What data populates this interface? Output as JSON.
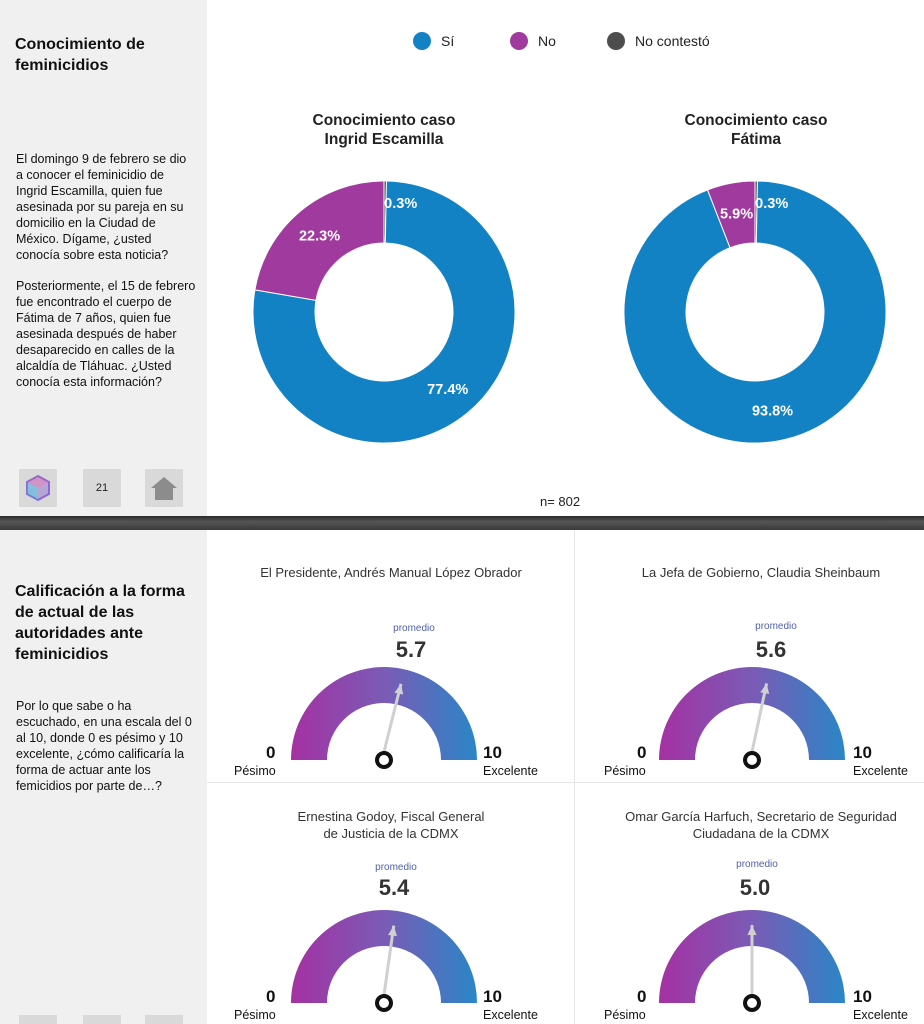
{
  "slide1": {
    "title": "Conocimiento de feminicidios",
    "question_p1": "El domingo 9 de febrero se dio a conocer el feminicidio de Ingrid Escamilla, quien fue asesinada por su pareja en su domicilio en la Ciudad de México. Dígame, ¿usted conocía sobre esta noticia?",
    "question_p2": "Posteriormente, el 15 de febrero fue encontrado el cuerpo de Fátima de 7 años, quien fue asesinada después de haber desaparecido en calles de la alcaldía de Tláhuac. ¿Usted conocía esta información?",
    "page_number": "21",
    "legend": [
      {
        "label": "Sí",
        "color": "#1282c4"
      },
      {
        "label": "No",
        "color": "#a03a9f"
      },
      {
        "label": "No contestó",
        "color": "#4d4d4d"
      }
    ],
    "n_label": "n= 802"
  },
  "slide2": {
    "title": "Calificación a la forma de actual de las autoridades ante feminicidios",
    "question": "Por lo que sabe o ha escuchado, en una escala del 0 al 10, donde 0 es pésimo y 10 excelente, ¿cómo calificaría la forma de actuar ante los femicidios por parte de…?",
    "promedio_label": "promedio",
    "min_value": "0",
    "max_value": "10",
    "min_label": "Pésimo",
    "max_label": "Excelente"
  },
  "chart_data": [
    {
      "type": "pie",
      "title": "Conocimiento caso Ingrid Escamilla",
      "title_lines": [
        "Conocimiento caso",
        "Ingrid Escamilla"
      ],
      "categories": [
        "No contestó",
        "Sí",
        "No"
      ],
      "values": [
        0.3,
        77.4,
        22.3
      ],
      "labels": [
        "0.3%",
        "77.4%",
        "22.3%"
      ],
      "colors": [
        "#4d4d4d",
        "#1282c4",
        "#a03a9f"
      ]
    },
    {
      "type": "pie",
      "title": "Conocimiento caso Fátima",
      "title_lines": [
        "Conocimiento caso",
        "Fátima"
      ],
      "categories": [
        "No contestó",
        "Sí",
        "No"
      ],
      "values": [
        0.3,
        93.8,
        5.9
      ],
      "labels": [
        "0.3%",
        "93.8%",
        "5.9%"
      ],
      "colors": [
        "#4d4d4d",
        "#1282c4",
        "#a03a9f"
      ]
    },
    {
      "type": "gauge",
      "title_lines": [
        "El Presidente, Andrés Manual López Obrador"
      ],
      "value": 5.7,
      "display": "5.7",
      "range": [
        0,
        10
      ]
    },
    {
      "type": "gauge",
      "title_lines": [
        "La Jefa de Gobierno, Claudia Sheinbaum"
      ],
      "value": 5.6,
      "display": "5.6",
      "range": [
        0,
        10
      ]
    },
    {
      "type": "gauge",
      "title_lines": [
        "Ernestina Godoy, Fiscal General",
        "de Justicia de la CDMX"
      ],
      "value": 5.4,
      "display": "5.4",
      "range": [
        0,
        10
      ]
    },
    {
      "type": "gauge",
      "title_lines": [
        "Omar García Harfuch, Secretario de Seguridad",
        "Ciudadana de la CDMX"
      ],
      "value": 5.0,
      "display": "5.0",
      "range": [
        0,
        10
      ]
    }
  ]
}
